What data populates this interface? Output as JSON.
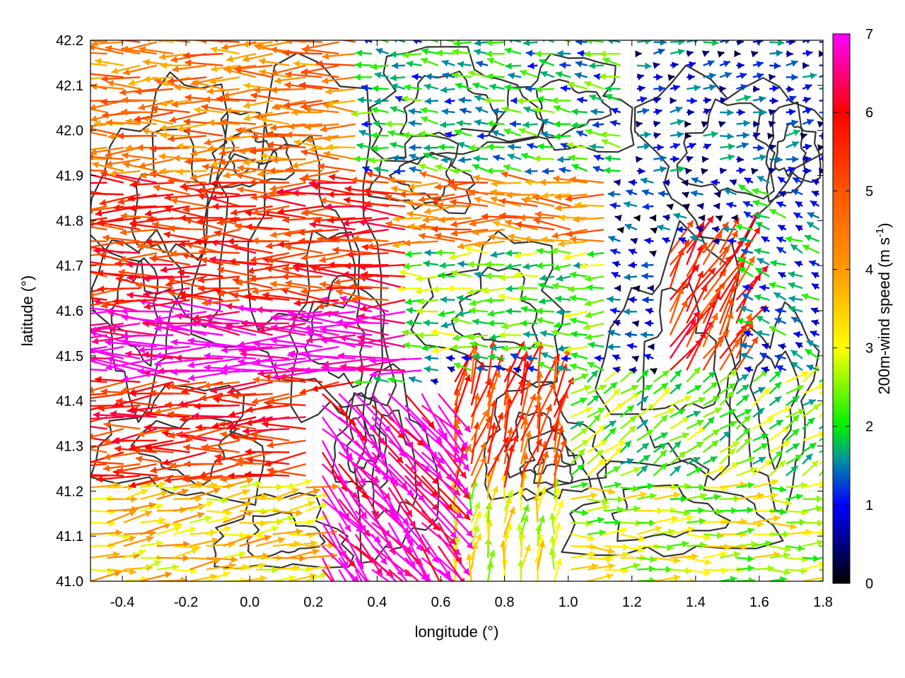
{
  "chart_data": {
    "type": "vector-field",
    "xlabel": "longitude (°)",
    "ylabel": "latitude (°)",
    "xlim": [
      -0.5,
      1.8
    ],
    "ylim": [
      41.0,
      42.2
    ],
    "xticks": [
      {
        "value": -0.4,
        "label": "-0.4"
      },
      {
        "value": -0.2,
        "label": "-0.2"
      },
      {
        "value": 0.0,
        "label": "0.0"
      },
      {
        "value": 0.2,
        "label": "0.2"
      },
      {
        "value": 0.4,
        "label": "0.4"
      },
      {
        "value": 0.6,
        "label": "0.6"
      },
      {
        "value": 0.8,
        "label": "0.8"
      },
      {
        "value": 1.0,
        "label": "1.0"
      },
      {
        "value": 1.2,
        "label": "1.2"
      },
      {
        "value": 1.4,
        "label": "1.4"
      },
      {
        "value": 1.6,
        "label": "1.6"
      },
      {
        "value": 1.8,
        "label": "1.8"
      }
    ],
    "yticks": [
      {
        "value": 41.0,
        "label": "41.0"
      },
      {
        "value": 41.1,
        "label": "41.1"
      },
      {
        "value": 41.2,
        "label": "41.2"
      },
      {
        "value": 41.3,
        "label": "41.3"
      },
      {
        "value": 41.4,
        "label": "41.4"
      },
      {
        "value": 41.5,
        "label": "41.5"
      },
      {
        "value": 41.6,
        "label": "41.6"
      },
      {
        "value": 41.7,
        "label": "41.7"
      },
      {
        "value": 41.8,
        "label": "41.8"
      },
      {
        "value": 41.9,
        "label": "41.9"
      },
      {
        "value": 42.0,
        "label": "42.0"
      },
      {
        "value": 42.1,
        "label": "42.1"
      },
      {
        "value": 42.2,
        "label": "42.2"
      }
    ],
    "grid": true,
    "colorbar": {
      "label": "200m-wind speed (m s",
      "label_sup": "-1",
      "label_end": ")",
      "range": [
        0,
        7
      ],
      "ticks": [
        {
          "value": 0,
          "label": "0"
        },
        {
          "value": 1,
          "label": "1"
        },
        {
          "value": 2,
          "label": "2"
        },
        {
          "value": 3,
          "label": "3"
        },
        {
          "value": 4,
          "label": "4"
        },
        {
          "value": 5,
          "label": "5"
        },
        {
          "value": 6,
          "label": "6"
        },
        {
          "value": 7,
          "label": "7"
        }
      ],
      "stops": [
        {
          "value": 0,
          "color": "#000000"
        },
        {
          "value": 1,
          "color": "#0000ff"
        },
        {
          "value": 1.6,
          "color": "#009999"
        },
        {
          "value": 2,
          "color": "#00ee00"
        },
        {
          "value": 3,
          "color": "#ffff00"
        },
        {
          "value": 4,
          "color": "#ff9900"
        },
        {
          "value": 5,
          "color": "#ff5500"
        },
        {
          "value": 6,
          "color": "#ff0000"
        },
        {
          "value": 7,
          "color": "#ff00ff"
        }
      ]
    },
    "contour_color": "#333333",
    "vector_regions": [
      {
        "lon": [
          -0.5,
          0.55
        ],
        "lat": [
          41.45,
          41.62
        ],
        "u": -1,
        "v": 0.05,
        "speed": 7
      },
      {
        "lon": [
          -0.5,
          0.5
        ],
        "lat": [
          41.62,
          41.9
        ],
        "u": -1,
        "v": 0.02,
        "speed": 5.5
      },
      {
        "lon": [
          -0.5,
          0.35
        ],
        "lat": [
          41.9,
          42.2
        ],
        "u": -1,
        "v": 0.0,
        "speed": 4.5
      },
      {
        "lon": [
          0.35,
          1.2
        ],
        "lat": [
          41.9,
          42.2
        ],
        "u": -0.7,
        "v": 0.1,
        "speed": 1.8
      },
      {
        "lon": [
          1.2,
          1.8
        ],
        "lat": [
          41.9,
          42.2
        ],
        "u": 0.6,
        "v": 0.1,
        "speed": 1.0
      },
      {
        "lon": [
          0.5,
          1.15
        ],
        "lat": [
          41.75,
          41.9
        ],
        "u": -1,
        "v": 0.03,
        "speed": 4.5
      },
      {
        "lon": [
          0.5,
          1.15
        ],
        "lat": [
          41.5,
          41.75
        ],
        "u": -1,
        "v": 0.0,
        "speed": 2.3
      },
      {
        "lon": [
          1.15,
          1.55
        ],
        "lat": [
          41.45,
          41.9
        ],
        "u": -0.6,
        "v": 0.1,
        "speed": 0.8
      },
      {
        "lon": [
          1.3,
          1.55
        ],
        "lat": [
          41.45,
          41.75
        ],
        "u": 0.5,
        "v": 0.8,
        "speed": 5.5
      },
      {
        "lon": [
          1.55,
          1.8
        ],
        "lat": [
          41.45,
          41.9
        ],
        "u": -0.5,
        "v": 0.2,
        "speed": 1.5
      },
      {
        "lon": [
          -0.5,
          0.35
        ],
        "lat": [
          41.22,
          41.45
        ],
        "u": -1,
        "v": -0.05,
        "speed": 5.5
      },
      {
        "lon": [
          0.2,
          0.6
        ],
        "lat": [
          41.0,
          41.42
        ],
        "u": 0.6,
        "v": -0.7,
        "speed": 6.8
      },
      {
        "lon": [
          0.6,
          1.0
        ],
        "lat": [
          41.2,
          41.45
        ],
        "u": 0.2,
        "v": 0.7,
        "speed": 5.2
      },
      {
        "lon": [
          1.0,
          1.8
        ],
        "lat": [
          41.22,
          41.45
        ],
        "u": 0.6,
        "v": 0.4,
        "speed": 2.3
      },
      {
        "lon": [
          -0.5,
          0.2
        ],
        "lat": [
          41.0,
          41.22
        ],
        "u": 1,
        "v": 0.15,
        "speed": 3.5
      },
      {
        "lon": [
          1.0,
          1.8
        ],
        "lat": [
          41.0,
          41.22
        ],
        "u": 1,
        "v": 0.03,
        "speed": 2.8
      },
      {
        "lon": [
          0.6,
          1.0
        ],
        "lat": [
          41.0,
          41.2
        ],
        "u": 0.1,
        "v": 0.8,
        "speed": 3.0
      }
    ]
  }
}
